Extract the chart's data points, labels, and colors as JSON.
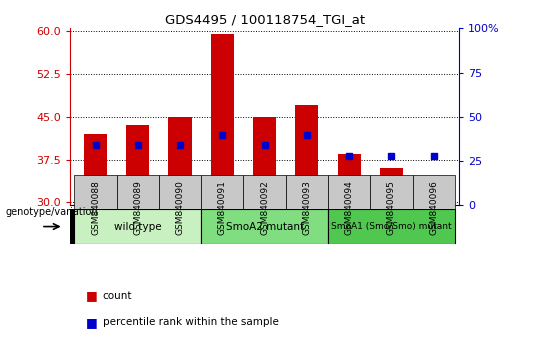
{
  "title": "GDS4495 / 100118754_TGI_at",
  "samples": [
    "GSM840088",
    "GSM840089",
    "GSM840090",
    "GSM840091",
    "GSM840092",
    "GSM840093",
    "GSM840094",
    "GSM840095",
    "GSM840096"
  ],
  "bar_heights": [
    42.0,
    43.5,
    45.0,
    59.5,
    45.0,
    47.0,
    38.5,
    36.0,
    33.5
  ],
  "bar_base": 30,
  "blue_percentile": [
    34,
    34,
    34,
    40,
    34,
    40,
    28,
    28,
    28
  ],
  "ylim_left": [
    29.5,
    60.5
  ],
  "ylim_right": [
    0,
    100
  ],
  "yticks_left": [
    30,
    37.5,
    45,
    52.5,
    60
  ],
  "yticks_right": [
    0,
    25,
    50,
    75,
    100
  ],
  "groups": [
    {
      "label": "wild type",
      "samples": [
        0,
        1,
        2
      ],
      "color": "#c8f0c0"
    },
    {
      "label": "SmoA2 mutant",
      "samples": [
        3,
        4,
        5
      ],
      "color": "#80dd80"
    },
    {
      "label": "SmoA1 (Smo/Smo) mutant",
      "samples": [
        6,
        7,
        8
      ],
      "color": "#50c850"
    }
  ],
  "bar_color": "#cc0000",
  "blue_color": "#0000cc",
  "left_axis_color": "#cc0000",
  "right_axis_color": "#0000cc",
  "grid_color": "#000000",
  "background_color": "#ffffff",
  "tick_bg_color": "#c8c8c8",
  "legend_count_label": "count",
  "legend_pct_label": "percentile rank within the sample",
  "genotype_label": "genotype/variation"
}
